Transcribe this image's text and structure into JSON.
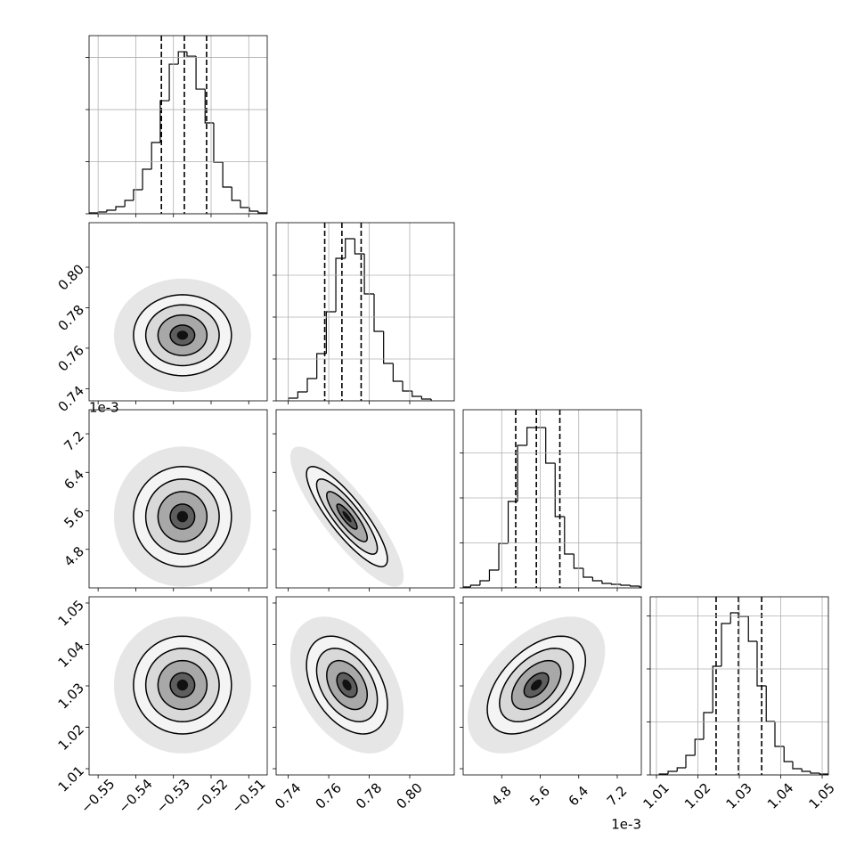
{
  "chart_data": {
    "type": "corner",
    "line_color": "#000000",
    "grid": true,
    "levels": [
      0.5,
      1,
      1.5,
      2
    ],
    "params": [
      {
        "lim": [
          -0.5524,
          -0.5051
        ],
        "ticks": [
          {
            "value": -0.55,
            "label": "−0.55"
          },
          {
            "value": -0.54,
            "label": "−0.54"
          },
          {
            "value": -0.53,
            "label": "−0.53"
          },
          {
            "value": -0.52,
            "label": "−0.52"
          },
          {
            "value": -0.51,
            "label": "−0.51"
          }
        ]
      },
      {
        "lim": [
          0.734,
          0.822
        ],
        "ticks": [
          0.74,
          0.76,
          0.78,
          {
            "value": 0.8,
            "label": "0.80"
          }
        ]
      },
      {
        "lim": [
          4.0,
          7.7
        ],
        "ticks": [
          4.8,
          5.6,
          6.4,
          7.2
        ],
        "offset": "1e-3"
      },
      {
        "lim": [
          1.0085,
          1.0515
        ],
        "ticks": [
          1.01,
          1.02,
          1.03,
          1.04,
          1.05
        ]
      }
    ],
    "hists": [
      {
        "bins": [
          -0.5524,
          -0.55,
          -0.5477,
          -0.5453,
          -0.5429,
          -0.5406,
          -0.5382,
          -0.5358,
          -0.5335,
          -0.5311,
          -0.5287,
          -0.5264,
          -0.524,
          -0.5216,
          -0.5193,
          -0.5169,
          -0.5145,
          -0.5122,
          -0.5098,
          -0.5075,
          -0.5051
        ],
        "counts": [
          17,
          34,
          68,
          137,
          256,
          462,
          855,
          1368,
          2171,
          2872,
          3111,
          3026,
          2393,
          1744,
          991,
          513,
          256,
          120,
          51,
          17
        ],
        "ylim": [
          0,
          3420
        ],
        "yticks": [
          0,
          1000,
          2000,
          3000
        ],
        "quantiles": [
          -0.5332,
          -0.5271,
          -0.5212
        ]
      },
      {
        "bins": [
          0.74,
          0.7447,
          0.7494,
          0.7541,
          0.7588,
          0.7635,
          0.7682,
          0.7729,
          0.7776,
          0.7824,
          0.7871,
          0.7918,
          0.7965,
          0.8012,
          0.8059,
          0.8106
        ],
        "counts": [
          64,
          213,
          532,
          1128,
          2128,
          3404,
          3872,
          3511,
          2553,
          1660,
          894,
          468,
          234,
          106,
          43
        ],
        "ylim": [
          0,
          4255
        ],
        "yticks": [
          0,
          1000,
          2000,
          3000
        ],
        "quantiles": [
          0.758,
          0.7665,
          0.776
        ]
      },
      {
        "bins": [
          3.96,
          4.155,
          4.35,
          4.545,
          4.74,
          4.935,
          5.13,
          5.325,
          5.52,
          5.715,
          5.91,
          6.105,
          6.3,
          6.495,
          6.69,
          6.885,
          7.08,
          7.275,
          7.47,
          7.665,
          7.86
        ],
        "counts": [
          20,
          59,
          158,
          396,
          990,
          1921,
          3168,
          3564,
          3564,
          2772,
          1584,
          752,
          436,
          238,
          158,
          99,
          79,
          59,
          40,
          20
        ],
        "ylim": [
          0,
          3960
        ],
        "yticks": [
          0,
          1000,
          2000,
          3000
        ],
        "quantiles": [
          5.091,
          5.52,
          6.008
        ]
      },
      {
        "bins": [
          1.0107,
          1.0128,
          1.015,
          1.0171,
          1.0193,
          1.0214,
          1.0236,
          1.0257,
          1.0279,
          1.03,
          1.0322,
          1.0343,
          1.0365,
          1.0386,
          1.0408,
          1.0429,
          1.0451,
          1.0472,
          1.0494,
          1.0515
        ],
        "counts": [
          17,
          67,
          134,
          370,
          672,
          1176,
          2050,
          2857,
          3059,
          2992,
          2521,
          1681,
          1008,
          538,
          252,
          118,
          67,
          34,
          17
        ],
        "ylim": [
          0,
          3361
        ],
        "yticks": [
          0,
          1000,
          2000,
          3000
        ],
        "quantiles": [
          1.0244,
          1.0298,
          1.0354
        ]
      }
    ],
    "pairs": [
      [
        {
          "mean": [
            -0.5276,
            0.7664
          ],
          "sigma": [
            0.0065,
            0.01
          ],
          "corr": 0.0
        }
      ],
      [
        {
          "mean": [
            -0.5276,
            5.48
          ],
          "sigma": [
            0.0065,
            0.52
          ],
          "corr": 0.0
        },
        {
          "mean": [
            0.769,
            5.48
          ],
          "sigma": [
            0.01,
            0.52
          ],
          "corr": -0.85
        }
      ],
      [
        {
          "mean": [
            -0.5276,
            1.0302
          ],
          "sigma": [
            0.0065,
            0.0059
          ],
          "corr": 0.0
        },
        {
          "mean": [
            0.769,
            1.0302
          ],
          "sigma": [
            0.01,
            0.0059
          ],
          "corr": -0.4
        },
        {
          "mean": [
            5.52,
            1.0302
          ],
          "sigma": [
            0.51,
            0.0059
          ],
          "corr": 0.5
        }
      ]
    ]
  }
}
